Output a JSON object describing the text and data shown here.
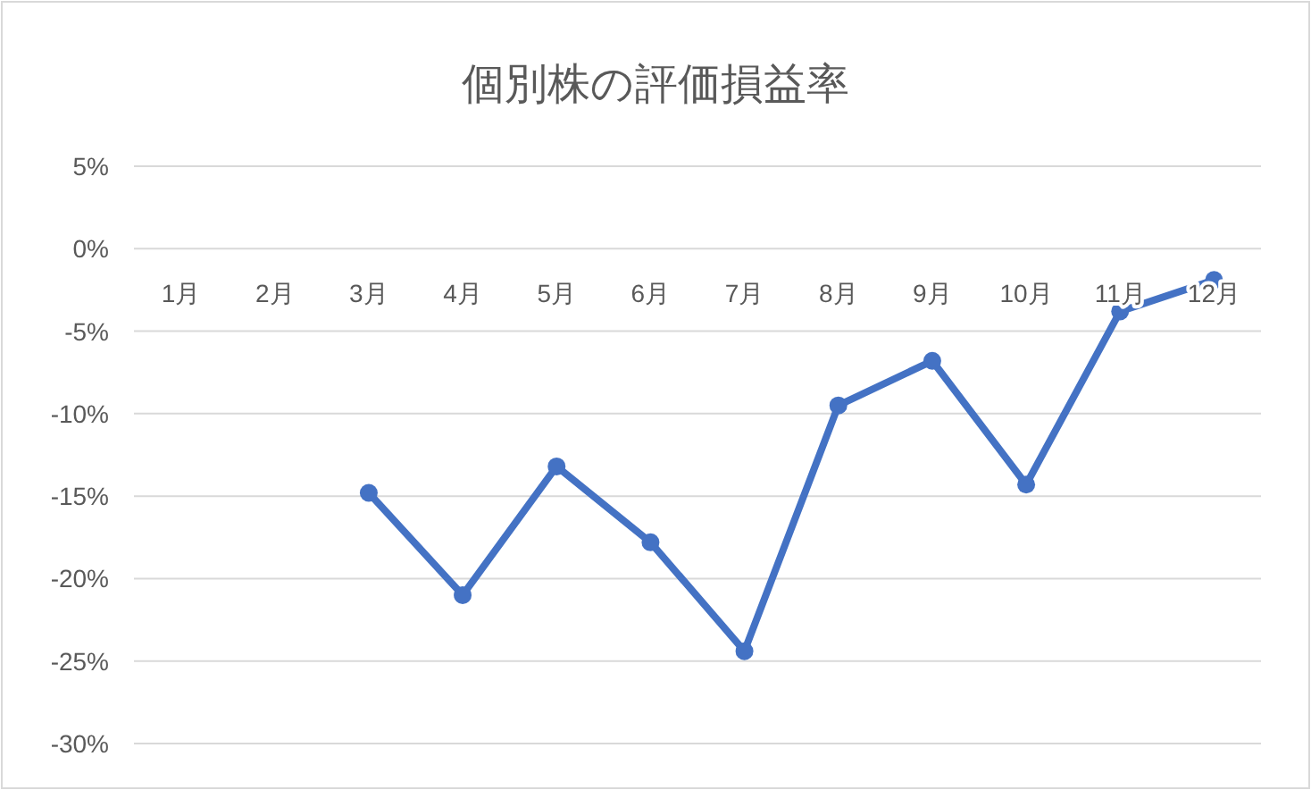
{
  "chart_data": {
    "type": "line",
    "title": "個別株の評価損益率",
    "categories": [
      "1月",
      "2月",
      "3月",
      "4月",
      "5月",
      "6月",
      "7月",
      "8月",
      "9月",
      "10月",
      "11月",
      "12月"
    ],
    "series": [
      {
        "color": "#4472c4",
        "values": [
          null,
          null,
          -14.8,
          -21.0,
          -13.2,
          -17.8,
          -24.4,
          -9.5,
          -6.8,
          -14.3,
          -3.8,
          -1.9
        ]
      }
    ],
    "ylim": [
      -30,
      5
    ],
    "yticks": [
      {
        "value": 5,
        "label": "5%"
      },
      {
        "value": 0,
        "label": "0%"
      },
      {
        "value": -5,
        "label": "-5%"
      },
      {
        "value": -10,
        "label": "-10%"
      },
      {
        "value": -15,
        "label": "-15%"
      },
      {
        "value": -20,
        "label": "-20%"
      },
      {
        "value": -25,
        "label": "-25%"
      },
      {
        "value": -30,
        "label": "-30%"
      }
    ],
    "grid": "y",
    "marker": "circle",
    "line_style": "solid"
  }
}
